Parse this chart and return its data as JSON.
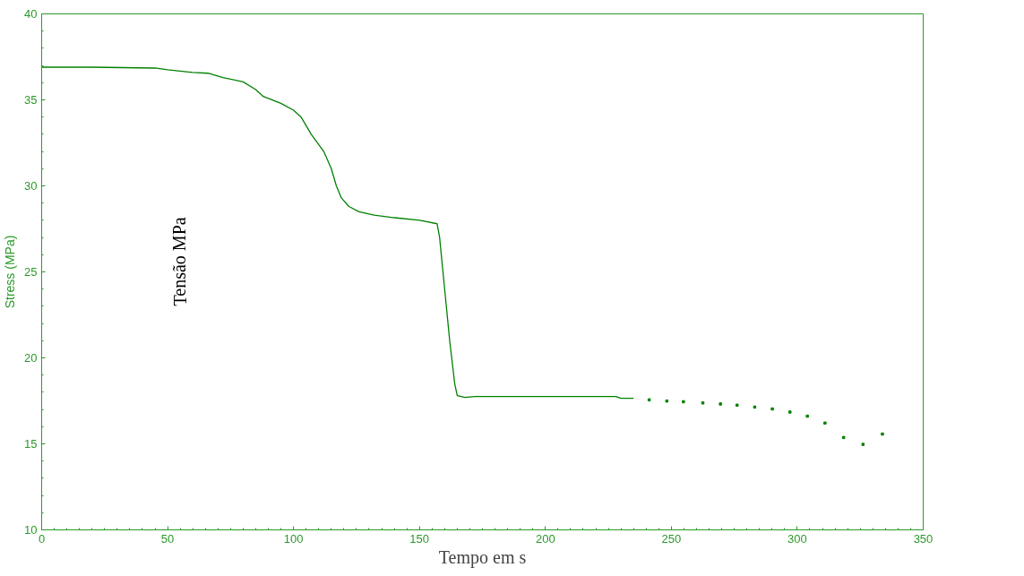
{
  "chart_data": {
    "type": "line",
    "xlabel": "Tempo em s",
    "ylabel": "Stress (MPa)",
    "annotations": [
      "Tensão MPa"
    ],
    "xlim": [
      0,
      350
    ],
    "xticks": [
      0,
      50,
      100,
      150,
      200,
      250,
      300,
      350
    ],
    "ylim": [
      10,
      40
    ],
    "yticks": [
      10,
      15,
      20,
      25,
      30,
      35,
      40
    ],
    "grid": false,
    "series": [
      {
        "color": "#008000",
        "x": [
          0,
          20,
          45,
          50,
          60,
          66,
          72,
          80,
          85,
          88,
          95,
          100,
          103,
          107,
          112,
          115,
          117,
          119,
          122,
          126,
          132,
          140,
          150,
          157,
          158,
          160,
          162,
          164,
          165,
          168,
          172,
          200,
          228,
          230,
          235
        ],
        "values": [
          36.9,
          36.9,
          36.85,
          36.75,
          36.6,
          36.55,
          36.3,
          36.05,
          35.6,
          35.2,
          34.8,
          34.4,
          34.0,
          33.0,
          32.0,
          31.0,
          30.0,
          29.3,
          28.8,
          28.5,
          28.3,
          28.15,
          28.0,
          27.8,
          27.0,
          24.0,
          21.0,
          18.5,
          17.8,
          17.7,
          17.75,
          17.75,
          17.75,
          17.65,
          17.65
        ]
      },
      {
        "type": "scatter",
        "color": "#008000",
        "marker": "square",
        "x": [
          241.2,
          248.2,
          254.8,
          262.5,
          269.5,
          276.1,
          283.1,
          290.1,
          297.1,
          304.0,
          311.0,
          318.4,
          326.1,
          333.8
        ],
        "values": [
          17.56,
          17.49,
          17.45,
          17.38,
          17.32,
          17.25,
          17.14,
          17.03,
          16.85,
          16.61,
          16.21,
          15.37,
          14.97,
          15.57
        ]
      }
    ]
  }
}
